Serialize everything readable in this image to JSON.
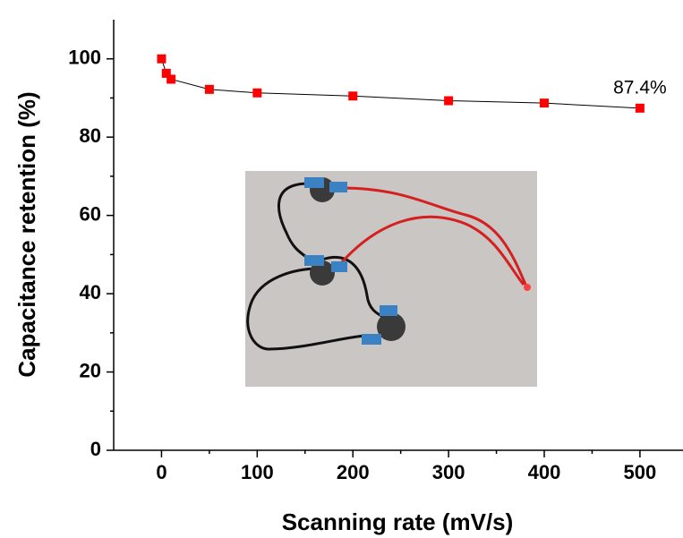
{
  "chart_data": {
    "type": "line",
    "x_label": "Scanning rate (mV/s)",
    "y_label": "Capacitance retention (%)",
    "x": [
      0,
      5,
      10,
      50,
      100,
      200,
      300,
      400,
      500
    ],
    "values": [
      100,
      96.3,
      94.8,
      92.2,
      91.3,
      90.5,
      89.3,
      88.7,
      87.4
    ],
    "color": "#ff0000",
    "line_color": "#000000",
    "annotation": "87.4%",
    "xlim": [
      -50,
      545
    ],
    "xticks": [
      0,
      100,
      200,
      300,
      400,
      500
    ],
    "ylim": [
      0,
      110
    ],
    "yticks": [
      0,
      20,
      40,
      60,
      80,
      100
    ]
  }
}
